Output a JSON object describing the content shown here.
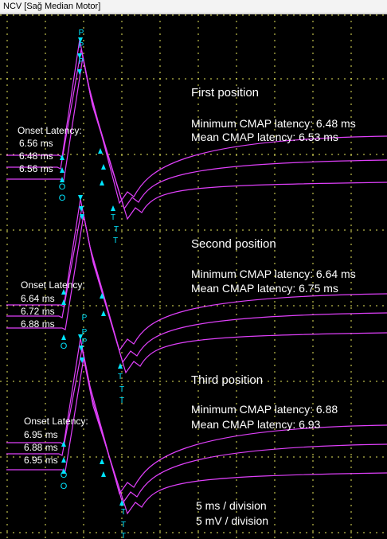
{
  "window": {
    "title": "NCV [Sağ Median Motor]"
  },
  "colors": {
    "background": "#000000",
    "grid": "#ffff66",
    "trace": "#e040fb",
    "marker": "#00e5ff",
    "text": "#ffffff"
  },
  "sections": [
    {
      "position_label": "First position",
      "min_text": "Minimum CMAP latency: 6.48 ms",
      "mean_text": "Mean CMAP latency: 6.53 ms",
      "onset_title": "Onset Latency:",
      "onset_values": [
        "6.56 ms",
        "6.48 ms",
        "6.56 ms"
      ]
    },
    {
      "position_label": "Second position",
      "min_text": "Minimum CMAP latency: 6.64 ms",
      "mean_text": "Mean CMAP latency: 6.75 ms",
      "onset_title": "Onset Latency:",
      "onset_values": [
        "6.64 ms",
        "6.72 ms",
        "6.88 ms"
      ]
    },
    {
      "position_label": "Third position",
      "min_text": "Minimum CMAP latency: 6.88",
      "mean_text": "Mean CMAP latency: 6.93",
      "onset_title": "Onset Latency:",
      "onset_values": [
        "6.95 ms",
        "6.88 ms",
        "6.95 ms"
      ]
    }
  ],
  "markers": {
    "onset": "O",
    "peak": "P",
    "trough": "T"
  },
  "scale": {
    "time_text": "5 ms / division",
    "amplitude_text": "5 mV / division"
  },
  "icons": [
    "triangle-up-marker-icon",
    "triangle-down-marker-icon"
  ]
}
